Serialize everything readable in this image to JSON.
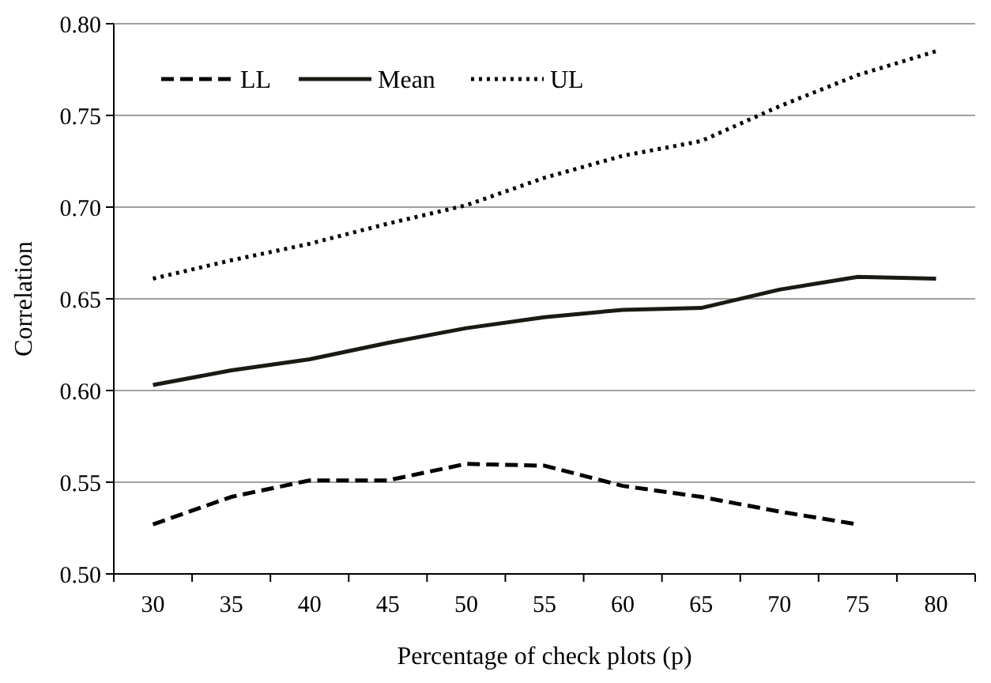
{
  "chart_data": {
    "type": "line",
    "xlabel": "Percentage  of check plots (p)",
    "ylabel": "Correlation",
    "categories": [
      "30",
      "35",
      "40",
      "45",
      "50",
      "55",
      "60",
      "65",
      "70",
      "75",
      "80"
    ],
    "series": [
      {
        "name": "LL",
        "color": "#000000",
        "line_style": "dashed",
        "values": [
          0.527,
          0.542,
          0.551,
          0.551,
          0.56,
          0.559,
          0.548,
          0.542,
          0.534,
          0.527,
          null
        ]
      },
      {
        "name": "Mean",
        "color": "#1a1a14",
        "line_style": "solid",
        "values": [
          0.603,
          0.611,
          0.617,
          0.626,
          0.634,
          0.64,
          0.644,
          0.645,
          0.655,
          0.662,
          0.661
        ]
      },
      {
        "name": "UL",
        "color": "#000000",
        "line_style": "dotted",
        "values": [
          0.661,
          0.671,
          0.68,
          0.691,
          0.701,
          0.716,
          0.728,
          0.736,
          0.755,
          0.772,
          0.785
        ]
      }
    ],
    "ylim": [
      0.5,
      0.8
    ],
    "yticks": [
      {
        "value": 0.5,
        "label": "0.50"
      },
      {
        "value": 0.55,
        "label": "0.55"
      },
      {
        "value": 0.6,
        "label": "0.60"
      },
      {
        "value": 0.65,
        "label": "0.65"
      },
      {
        "value": 0.7,
        "label": "0.70"
      },
      {
        "value": 0.75,
        "label": "0.75"
      },
      {
        "value": 0.8,
        "label": "0.80"
      }
    ],
    "grid": "y",
    "legend": "top left"
  }
}
